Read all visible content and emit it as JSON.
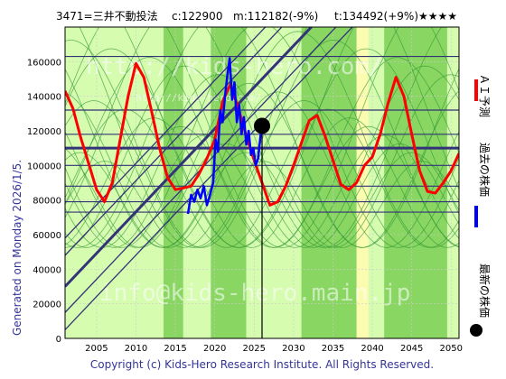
{
  "header": {
    "ticker": "3471=三井不動投法",
    "current": "c:122900",
    "median": "m:112182(-9%)",
    "target": "t:134492(+9%)",
    "rating": "★★★★"
  },
  "side_label": "Generated on Monday 2026/1/5.",
  "footer": "Copyright (c) Kids-Hero Research Institute. All Rights Reserved.",
  "watermarks": [
    "http://kids-hero.com/",
    "http://kids-hero.com/",
    "info@kids-hero.main.jp"
  ],
  "legend": [
    {
      "label": "ＡＩ予測",
      "color": "#ff0000"
    },
    {
      "label": "過去の株価",
      "color": "#0000ff"
    },
    {
      "label": "最新の株価",
      "color": "#000000"
    }
  ],
  "colors": {
    "prediction": "#ff0000",
    "history": "#0000ff",
    "latest_marker": "#000000",
    "band_green": "#66cc33",
    "band_light": "#ccff99",
    "band_yellow": "#ffff99",
    "axis_text": "#333399",
    "trend_line": "#333377"
  },
  "chart_data": {
    "type": "line",
    "title": "",
    "xlabel": "",
    "ylabel": "",
    "xlim": [
      2001,
      2051
    ],
    "ylim": [
      0,
      180000
    ],
    "x_ticks": [
      2005,
      2010,
      2015,
      2020,
      2025,
      2030,
      2035,
      2040,
      2045,
      2050
    ],
    "y_ticks": [
      0,
      20000,
      40000,
      60000,
      80000,
      100000,
      120000,
      140000,
      160000
    ],
    "latest": {
      "x": 2026.0,
      "y": 122900
    },
    "horizontal_levels": [
      163000,
      132000,
      118000,
      110000,
      100000,
      88000,
      79000,
      73000
    ],
    "series": [
      {
        "name": "ＡＩ予測",
        "color": "#ff0000",
        "points": [
          [
            2001.0,
            143000
          ],
          [
            2002.0,
            133000
          ],
          [
            2003.0,
            116000
          ],
          [
            2004.0,
            101000
          ],
          [
            2005.0,
            86000
          ],
          [
            2006.0,
            79000
          ],
          [
            2007.0,
            90000
          ],
          [
            2008.0,
            115000
          ],
          [
            2009.0,
            140000
          ],
          [
            2010.0,
            159000
          ],
          [
            2011.0,
            151000
          ],
          [
            2012.0,
            131000
          ],
          [
            2013.0,
            110000
          ],
          [
            2014.0,
            93000
          ],
          [
            2015.0,
            86000
          ],
          [
            2016.0,
            87000
          ],
          [
            2017.0,
            88000
          ],
          [
            2018.0,
            95000
          ],
          [
            2019.0,
            104000
          ],
          [
            2020.0,
            115000
          ],
          [
            2021.0,
            137000
          ],
          [
            2022.0,
            147000
          ],
          [
            2023.0,
            133000
          ],
          [
            2024.0,
            117000
          ],
          [
            2025.0,
            103000
          ],
          [
            2026.0,
            90000
          ],
          [
            2027.0,
            77000
          ],
          [
            2028.0,
            79000
          ],
          [
            2029.0,
            88000
          ],
          [
            2030.0,
            100000
          ],
          [
            2031.0,
            113000
          ],
          [
            2032.0,
            126000
          ],
          [
            2033.0,
            129000
          ],
          [
            2034.0,
            117000
          ],
          [
            2035.0,
            103000
          ],
          [
            2036.0,
            89000
          ],
          [
            2037.0,
            86000
          ],
          [
            2038.0,
            90000
          ],
          [
            2039.0,
            100000
          ],
          [
            2040.0,
            105000
          ],
          [
            2041.0,
            118000
          ],
          [
            2042.0,
            136000
          ],
          [
            2043.0,
            151000
          ],
          [
            2044.0,
            140000
          ],
          [
            2045.0,
            118000
          ],
          [
            2046.0,
            97000
          ],
          [
            2047.0,
            85000
          ],
          [
            2048.0,
            84000
          ],
          [
            2049.0,
            90000
          ],
          [
            2050.0,
            97000
          ],
          [
            2051.0,
            107000
          ]
        ]
      },
      {
        "name": "過去の株価",
        "color": "#0000ff",
        "points": [
          [
            2016.6,
            72000
          ],
          [
            2017.0,
            83000
          ],
          [
            2017.4,
            79000
          ],
          [
            2017.8,
            86000
          ],
          [
            2018.2,
            81000
          ],
          [
            2018.6,
            88000
          ],
          [
            2019.0,
            77000
          ],
          [
            2019.4,
            83000
          ],
          [
            2019.8,
            90000
          ],
          [
            2020.1,
            115000
          ],
          [
            2020.4,
            108000
          ],
          [
            2020.7,
            132000
          ],
          [
            2021.0,
            125000
          ],
          [
            2021.3,
            140000
          ],
          [
            2021.6,
            152000
          ],
          [
            2021.9,
            162000
          ],
          [
            2022.2,
            138000
          ],
          [
            2022.5,
            148000
          ],
          [
            2022.8,
            125000
          ],
          [
            2023.1,
            135000
          ],
          [
            2023.4,
            118000
          ],
          [
            2023.7,
            128000
          ],
          [
            2024.0,
            112000
          ],
          [
            2024.3,
            120000
          ],
          [
            2024.6,
            106000
          ],
          [
            2024.9,
            110000
          ],
          [
            2025.2,
            100000
          ],
          [
            2025.5,
            104000
          ],
          [
            2025.8,
            117000
          ],
          [
            2026.0,
            122900
          ]
        ]
      }
    ]
  }
}
